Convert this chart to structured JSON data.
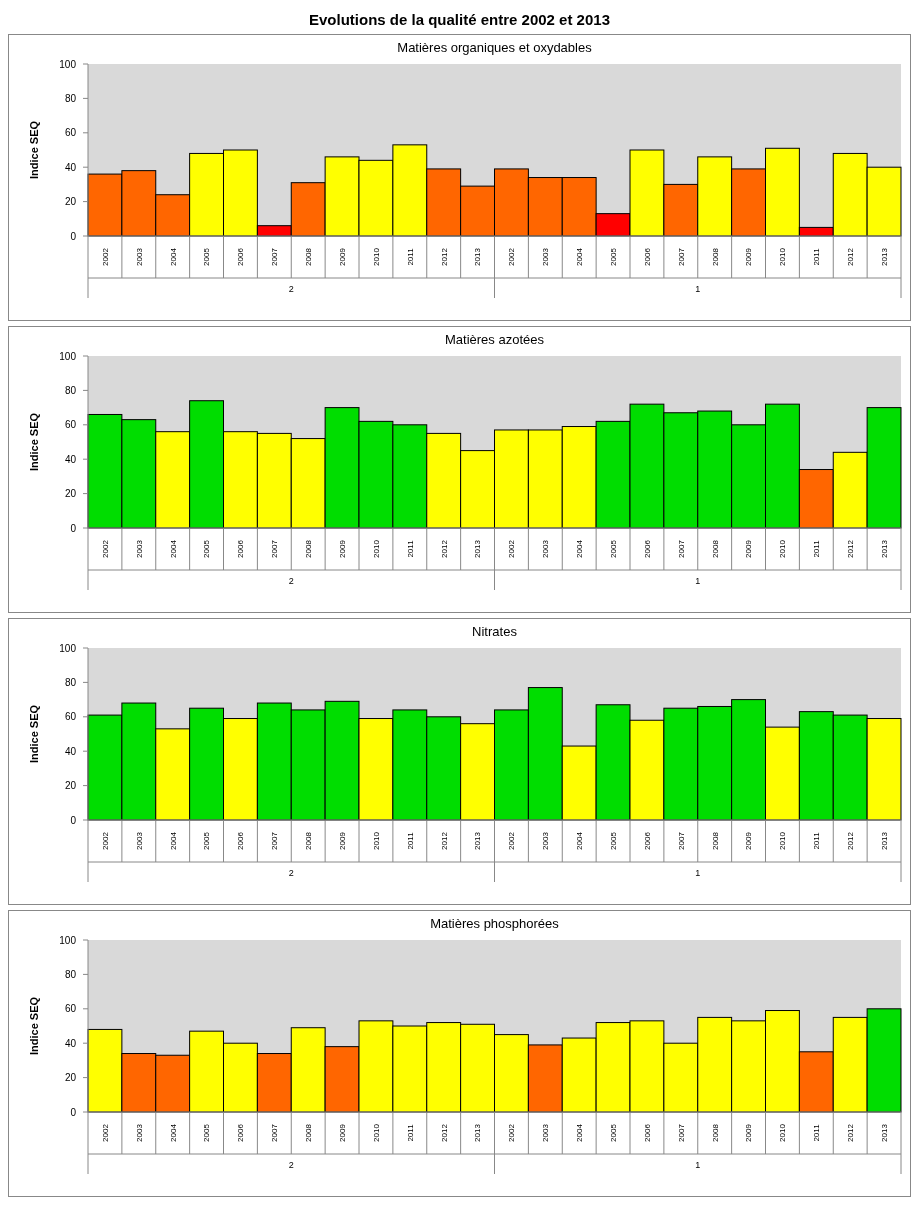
{
  "chart_data": [
    {
      "type": "bar",
      "title": "Evolutions de la qualité entre 2002 et 2013",
      "subtitle": "Matières organiques et oxydables",
      "ylabel": "Indice SEQ",
      "ylim": [
        0,
        100
      ],
      "yticks": [
        0,
        20,
        40,
        60,
        80,
        100
      ],
      "grid": false,
      "categories": [
        "2002",
        "2003",
        "2004",
        "2005",
        "2006",
        "2007",
        "2008",
        "2009",
        "2010",
        "2011",
        "2012",
        "2013",
        "2002",
        "2003",
        "2004",
        "2005",
        "2006",
        "2007",
        "2008",
        "2009",
        "2010",
        "2011",
        "2012",
        "2013"
      ],
      "values": [
        36,
        38,
        24,
        48,
        50,
        6,
        31,
        46,
        44,
        53,
        39,
        29,
        39,
        34,
        34,
        13,
        50,
        30,
        46,
        39,
        51,
        5,
        48,
        40
      ],
      "colors": [
        "#ff6600",
        "#ff6600",
        "#ff6600",
        "#ffff00",
        "#ffff00",
        "#ff0000",
        "#ff6600",
        "#ffff00",
        "#ffff00",
        "#ffff00",
        "#ff6600",
        "#ff6600",
        "#ff6600",
        "#ff6600",
        "#ff6600",
        "#ff0000",
        "#ffff00",
        "#ff6600",
        "#ffff00",
        "#ff6600",
        "#ffff00",
        "#ff0000",
        "#ffff00",
        "#ffff00"
      ],
      "annotations": [
        "2",
        "1"
      ]
    },
    {
      "type": "bar",
      "title": "Matières azotées",
      "ylabel": "Indice SEQ",
      "ylim": [
        0,
        100
      ],
      "yticks": [
        0,
        20,
        40,
        60,
        80,
        100
      ],
      "grid": false,
      "categories": [
        "2002",
        "2003",
        "2004",
        "2005",
        "2006",
        "2007",
        "2008",
        "2009",
        "2010",
        "2011",
        "2012",
        "2013",
        "2002",
        "2003",
        "2004",
        "2005",
        "2006",
        "2007",
        "2008",
        "2009",
        "2010",
        "2011",
        "2012",
        "2013"
      ],
      "values": [
        66,
        63,
        56,
        74,
        56,
        55,
        52,
        70,
        62,
        60,
        55,
        45,
        57,
        57,
        59,
        62,
        72,
        67,
        68,
        60,
        72,
        34,
        44,
        70
      ],
      "colors": [
        "#00dd00",
        "#00dd00",
        "#ffff00",
        "#00dd00",
        "#ffff00",
        "#ffff00",
        "#ffff00",
        "#00dd00",
        "#00dd00",
        "#00dd00",
        "#ffff00",
        "#ffff00",
        "#ffff00",
        "#ffff00",
        "#ffff00",
        "#00dd00",
        "#00dd00",
        "#00dd00",
        "#00dd00",
        "#00dd00",
        "#00dd00",
        "#ff6600",
        "#ffff00",
        "#00dd00"
      ],
      "annotations": [
        "2",
        "1"
      ]
    },
    {
      "type": "bar",
      "title": "Nitrates",
      "ylabel": "Indice SEQ",
      "ylim": [
        0,
        100
      ],
      "yticks": [
        0,
        20,
        40,
        60,
        80,
        100
      ],
      "grid": false,
      "categories": [
        "2002",
        "2003",
        "2004",
        "2005",
        "2006",
        "2007",
        "2008",
        "2009",
        "2010",
        "2011",
        "2012",
        "2013",
        "2002",
        "2003",
        "2004",
        "2005",
        "2006",
        "2007",
        "2008",
        "2009",
        "2010",
        "2011",
        "2012",
        "2013"
      ],
      "values": [
        61,
        68,
        53,
        65,
        59,
        68,
        64,
        69,
        59,
        64,
        60,
        56,
        64,
        77,
        43,
        67,
        58,
        65,
        66,
        70,
        54,
        63,
        61,
        59
      ],
      "colors": [
        "#00dd00",
        "#00dd00",
        "#ffff00",
        "#00dd00",
        "#ffff00",
        "#00dd00",
        "#00dd00",
        "#00dd00",
        "#ffff00",
        "#00dd00",
        "#00dd00",
        "#ffff00",
        "#00dd00",
        "#00dd00",
        "#ffff00",
        "#00dd00",
        "#ffff00",
        "#00dd00",
        "#00dd00",
        "#00dd00",
        "#ffff00",
        "#00dd00",
        "#00dd00",
        "#ffff00"
      ],
      "annotations": [
        "2",
        "1"
      ]
    },
    {
      "type": "bar",
      "title": "Matières phosphorées",
      "ylabel": "Indice SEQ",
      "ylim": [
        0,
        100
      ],
      "yticks": [
        0,
        20,
        40,
        60,
        80,
        100
      ],
      "grid": false,
      "categories": [
        "2002",
        "2003",
        "2004",
        "2005",
        "2006",
        "2007",
        "2008",
        "2009",
        "2010",
        "2011",
        "2012",
        "2013",
        "2002",
        "2003",
        "2004",
        "2005",
        "2006",
        "2007",
        "2008",
        "2009",
        "2010",
        "2011",
        "2012",
        "2013"
      ],
      "values": [
        48,
        34,
        33,
        47,
        40,
        34,
        49,
        38,
        53,
        50,
        52,
        51,
        45,
        39,
        43,
        52,
        53,
        40,
        55,
        53,
        59,
        35,
        55,
        60
      ],
      "colors": [
        "#ffff00",
        "#ff6600",
        "#ff6600",
        "#ffff00",
        "#ffff00",
        "#ff6600",
        "#ffff00",
        "#ff6600",
        "#ffff00",
        "#ffff00",
        "#ffff00",
        "#ffff00",
        "#ffff00",
        "#ff6600",
        "#ffff00",
        "#ffff00",
        "#ffff00",
        "#ffff00",
        "#ffff00",
        "#ffff00",
        "#ffff00",
        "#ff6600",
        "#ffff00",
        "#00dd00"
      ],
      "annotations": [
        "2",
        "1"
      ]
    }
  ]
}
